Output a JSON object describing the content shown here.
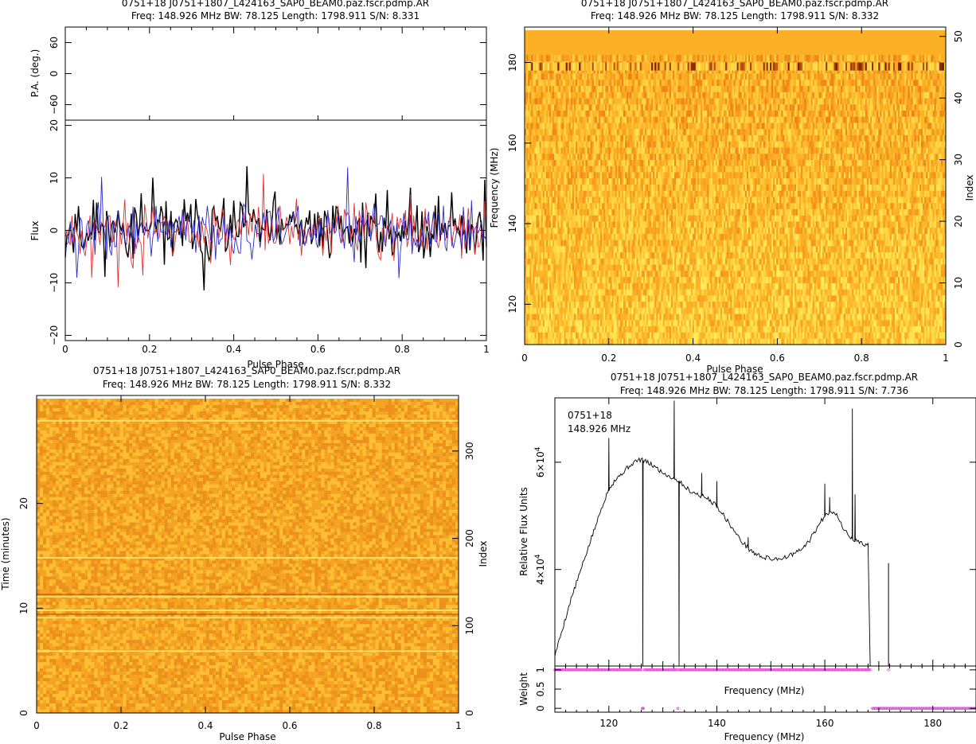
{
  "chart_data": [
    {
      "type": "line",
      "title": "0751+18 J0751+1807_L424163_SAP0_BEAM0.paz.fscr.pdmp.AR",
      "subtitle": "Freq: 148.926 MHz BW: 78.125 Length: 1798.911 S/N: 8.331",
      "xlabel": "Pulse Phase",
      "xlim": [
        0,
        1
      ],
      "xticks": [
        "0",
        "0.2",
        "0.4",
        "0.6",
        "0.8",
        "1"
      ],
      "pa_panel": {
        "ylabel": "P.A. (deg.)",
        "ylim": [
          -90,
          90
        ],
        "yticks": [
          "60",
          "0",
          "−60"
        ]
      },
      "flux_panel": {
        "ylabel": "Flux",
        "ylim": [
          -21,
          21
        ],
        "yticks": [
          "20",
          "10",
          "0",
          "−10",
          "−20"
        ],
        "series": [
          {
            "color": "#000000",
            "n": 256,
            "seed": 11,
            "amp": 5.5,
            "offset": 0.3
          },
          {
            "color": "#e03030",
            "n": 256,
            "seed": 23,
            "amp": 4.8,
            "offset": 0
          },
          {
            "color": "#2a2ad0",
            "n": 256,
            "seed": 37,
            "amp": 4.6,
            "offset": -0.2
          }
        ]
      }
    },
    {
      "type": "heatmap",
      "title": "0751+18 J0751+1807_L424163_SAP0_BEAM0.paz.fscr.pdmp.AR",
      "subtitle": "Freq: 148.926 MHz BW: 78.125 Length: 1798.911 S/N: 8.332",
      "xlabel": "Pulse Phase",
      "ylabel": "Frequency (MHz)",
      "y2label": "Index",
      "xlim": [
        0,
        1
      ],
      "ylim": [
        110,
        188
      ],
      "y2lim": [
        0,
        51
      ],
      "xticks": [
        "0",
        "0.2",
        "0.4",
        "0.6",
        "0.8",
        "1"
      ],
      "yticks": [
        "120",
        "140",
        "160",
        "180"
      ],
      "y2ticks": [
        "0",
        "10",
        "20",
        "30",
        "40",
        "50"
      ],
      "zapped_channels_MHz": [
        180.5,
        188
      ]
    },
    {
      "type": "heatmap",
      "title": "0751+18 J0751+1807_L424163_SAP0_BEAM0.paz.fscr.pdmp.AR",
      "subtitle": "Freq: 148.926 MHz BW: 78.125 Length: 1798.911 S/N: 8.332",
      "xlabel": "Pulse Phase",
      "ylabel": "Time (minutes)",
      "y2label": "Index",
      "xlim": [
        0,
        1
      ],
      "ylim": [
        0,
        30
      ],
      "y2lim": [
        0,
        360
      ],
      "xticks": [
        "0",
        "0.2",
        "0.4",
        "0.6",
        "0.8",
        "1"
      ],
      "yticks": [
        "0",
        "10",
        "20"
      ],
      "y2ticks": [
        "0",
        "100",
        "200",
        "300"
      ],
      "bright_rows_min": [
        5.9,
        9.1,
        9.8,
        11.1,
        14.8,
        27.9
      ],
      "dark_rows_min": [
        9.4,
        11.3
      ]
    },
    {
      "type": "line",
      "title": "0751+18 J0751+1807_L424163_SAP0_BEAM0.paz.fscr.pdmp.AR",
      "subtitle": "Freq: 148.926 MHz BW: 78.125 Length: 1798.911 S/N: 7.736",
      "legend_lines": [
        "0751+18",
        "148.926 MHz"
      ],
      "xlabel": "Frequency (MHz)",
      "xlim": [
        110,
        188
      ],
      "xticks": [
        "120",
        "140",
        "160",
        "180"
      ],
      "bandpass_panel": {
        "ylabel": "Relative Flux Units",
        "ylim": [
          22000,
          72000
        ],
        "ytick_values": [
          40000,
          60000
        ],
        "ytick_mantissa": [
          "4×10",
          "6×10"
        ],
        "ytick_exponent": "4",
        "x": [
          110,
          111,
          112,
          113,
          114,
          115,
          116,
          117,
          118,
          119,
          120,
          121,
          122,
          123,
          124,
          125,
          126,
          127,
          128,
          129,
          130,
          131,
          132,
          133,
          134,
          135,
          136,
          137,
          138,
          139,
          140,
          141,
          142,
          143,
          144,
          145,
          146,
          147,
          148,
          149,
          150,
          151,
          152,
          153,
          154,
          155,
          156,
          157,
          158,
          159,
          160,
          161,
          162,
          163,
          164,
          165,
          166,
          167,
          168
        ],
        "y": [
          24000,
          27500,
          31000,
          34500,
          37500,
          40500,
          43500,
          46500,
          49500,
          52500,
          55000,
          56500,
          57500,
          58500,
          59500,
          60200,
          60500,
          60000,
          59500,
          58800,
          58000,
          57500,
          57000,
          56500,
          55500,
          54700,
          54200,
          53800,
          53400,
          52700,
          51800,
          50500,
          49000,
          47500,
          46000,
          44800,
          43800,
          43000,
          42500,
          42200,
          42000,
          42000,
          42100,
          42400,
          42800,
          43300,
          44000,
          45200,
          46800,
          48500,
          50000,
          51000,
          50500,
          48500,
          46800,
          45800,
          45200,
          44800,
          44600
        ],
        "spikes": [
          {
            "x": 120.0,
            "y": 64500
          },
          {
            "x": 126.3,
            "y": 22000
          },
          {
            "x": 132.1,
            "y": 71500
          },
          {
            "x": 133.0,
            "y": 22000
          },
          {
            "x": 137.2,
            "y": 58000
          },
          {
            "x": 140.0,
            "y": 56500
          },
          {
            "x": 145.8,
            "y": 46000
          },
          {
            "x": 160.0,
            "y": 56000
          },
          {
            "x": 160.9,
            "y": 53500
          },
          {
            "x": 165.1,
            "y": 70000
          },
          {
            "x": 165.6,
            "y": 54000
          },
          {
            "x": 168.4,
            "y": 22000
          },
          {
            "x": 171.8,
            "y": 41200
          }
        ]
      },
      "weight_panel": {
        "ylabel": "Weight",
        "xlabel_inner": "Frequency (MHz)",
        "ylim": [
          -0.1,
          1.1
        ],
        "yticks": [
          "0",
          "0.5",
          "1"
        ],
        "zero_weight_MHz": [
          126.3,
          132.8
        ],
        "zero_range_MHz": [
          168.6,
          188
        ],
        "extra_one_MHz": [
          171.8
        ],
        "marker_color": "#e040e0"
      }
    }
  ]
}
